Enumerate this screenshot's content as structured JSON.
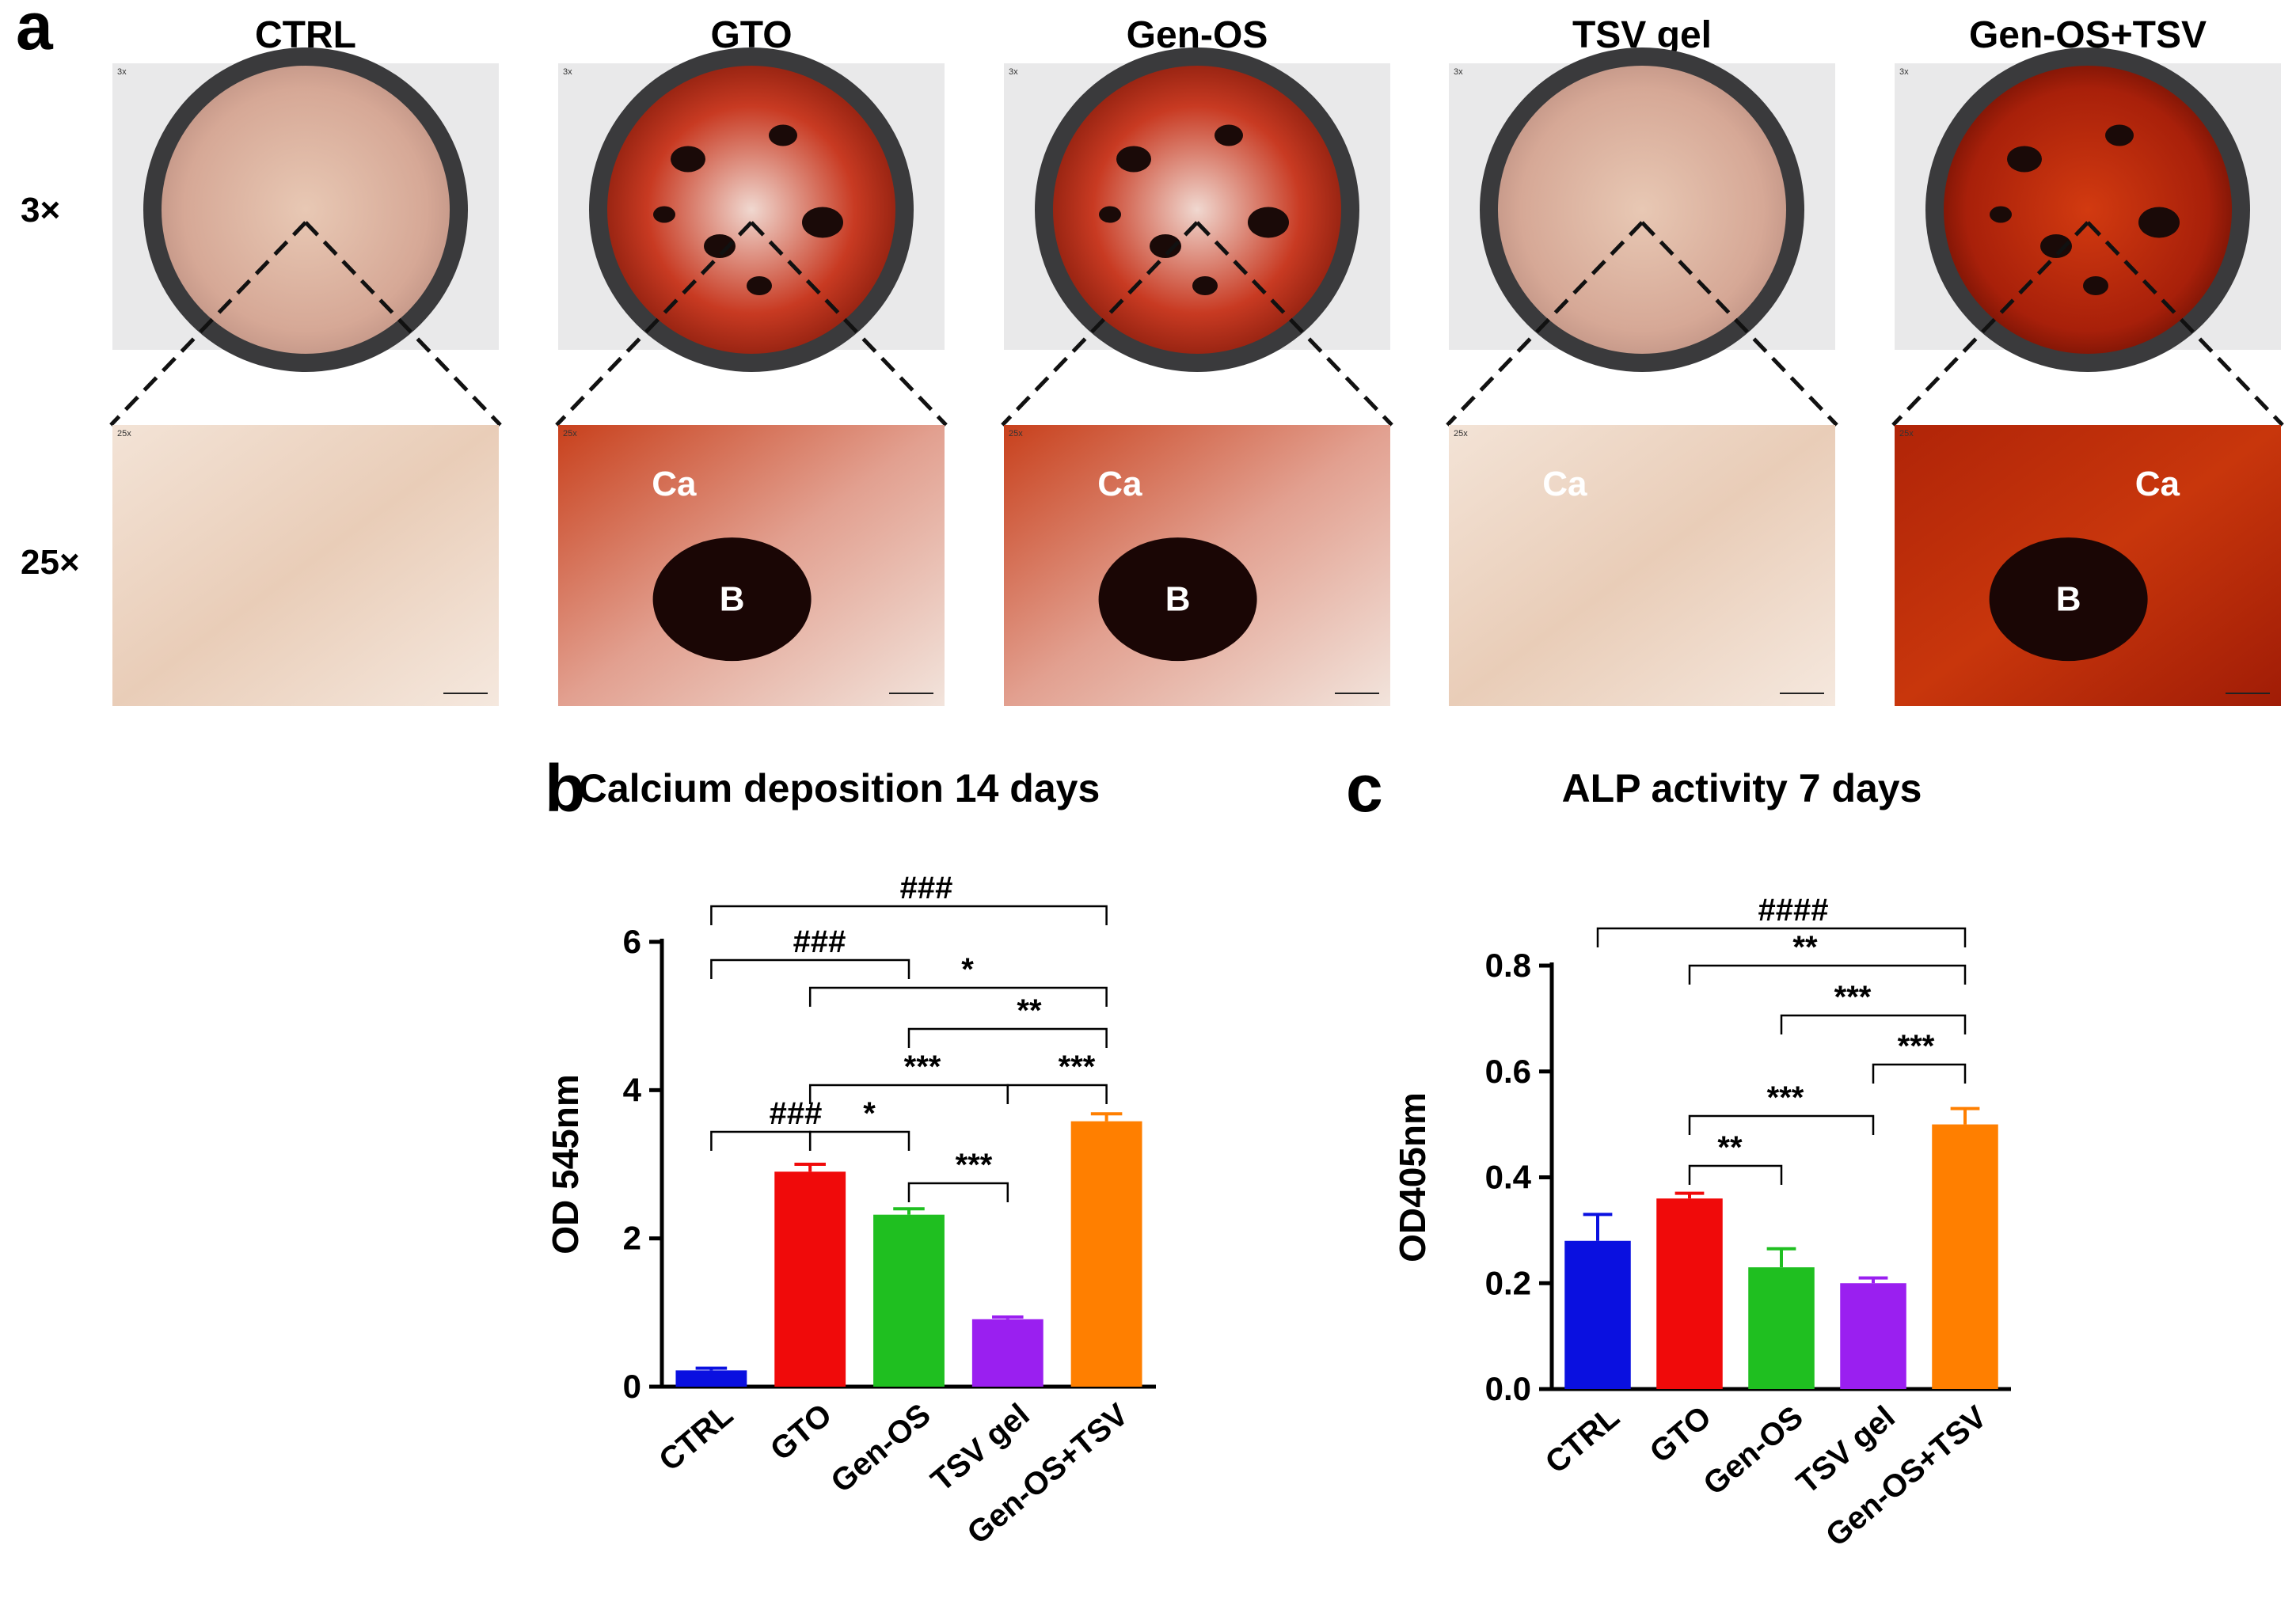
{
  "panel_a": {
    "letter": "a",
    "magnifications": [
      "3×",
      "25×"
    ],
    "groups": [
      {
        "title": "CTRL",
        "intensity": "light",
        "labels_25x": []
      },
      {
        "title": "GTO",
        "intensity": "medium",
        "labels_25x": [
          "Ca",
          "B"
        ]
      },
      {
        "title": "Gen-OS",
        "intensity": "medium",
        "labels_25x": [
          "Ca",
          "B"
        ]
      },
      {
        "title": "TSV gel",
        "intensity": "light",
        "labels_25x": [
          "Ca"
        ]
      },
      {
        "title": "Gen-OS+TSV",
        "intensity": "strong",
        "labels_25x": [
          "Ca",
          "B"
        ]
      }
    ]
  },
  "chart_data": [
    {
      "panel": "b",
      "type": "bar",
      "title": "Calcium deposition 14 days",
      "ylabel": "OD 545nm",
      "xlabel": "",
      "ylim": [
        0,
        6
      ],
      "yticks": [
        "0",
        "2",
        "4",
        "6"
      ],
      "categories": [
        "CTRL",
        "GTO",
        "Gen-OS",
        "TSV gel",
        "Gen-OS+TSV"
      ],
      "values": [
        0.22,
        2.9,
        2.32,
        0.91,
        3.58
      ],
      "errors": [
        0.03,
        0.1,
        0.08,
        0.03,
        0.1
      ],
      "colors": [
        "#0a10e0",
        "#f00a0a",
        "#1fbf20",
        "#9a1ff0",
        "#ff7f00"
      ],
      "comparisons": [
        {
          "a": 0,
          "b": 4,
          "label": "###"
        },
        {
          "a": 0,
          "b": 2,
          "label": "###"
        },
        {
          "a": 1,
          "b": 4,
          "label": "*"
        },
        {
          "a": 2,
          "b": 4,
          "label": "**"
        },
        {
          "a": 1,
          "b": 3,
          "label": "***"
        },
        {
          "a": 3,
          "b": 4,
          "label": "***"
        },
        {
          "a": 0,
          "b": 1,
          "label": "###"
        },
        {
          "a": 1,
          "b": 2,
          "label": "*"
        },
        {
          "a": 2,
          "b": 3,
          "label": "***"
        }
      ]
    },
    {
      "panel": "c",
      "type": "bar",
      "title": "ALP activity 7 days",
      "ylabel": "OD405nm",
      "xlabel": "",
      "ylim": [
        0,
        0.8
      ],
      "yticks": [
        "0.0",
        "0.2",
        "0.4",
        "0.6",
        "0.8"
      ],
      "categories": [
        "CTRL",
        "GTO",
        "Gen-OS",
        "TSV gel",
        "Gen-OS+TSV"
      ],
      "values": [
        0.28,
        0.36,
        0.23,
        0.2,
        0.5
      ],
      "errors": [
        0.05,
        0.01,
        0.035,
        0.01,
        0.03
      ],
      "colors": [
        "#0a10e0",
        "#f00a0a",
        "#1fbf20",
        "#9a1ff0",
        "#ff7f00"
      ],
      "comparisons": [
        {
          "a": 0,
          "b": 4,
          "label": "####"
        },
        {
          "a": 1,
          "b": 4,
          "label": "**"
        },
        {
          "a": 2,
          "b": 4,
          "label": "***"
        },
        {
          "a": 3,
          "b": 4,
          "label": "***"
        },
        {
          "a": 1,
          "b": 3,
          "label": "***"
        },
        {
          "a": 1,
          "b": 2,
          "label": "**"
        }
      ]
    }
  ]
}
